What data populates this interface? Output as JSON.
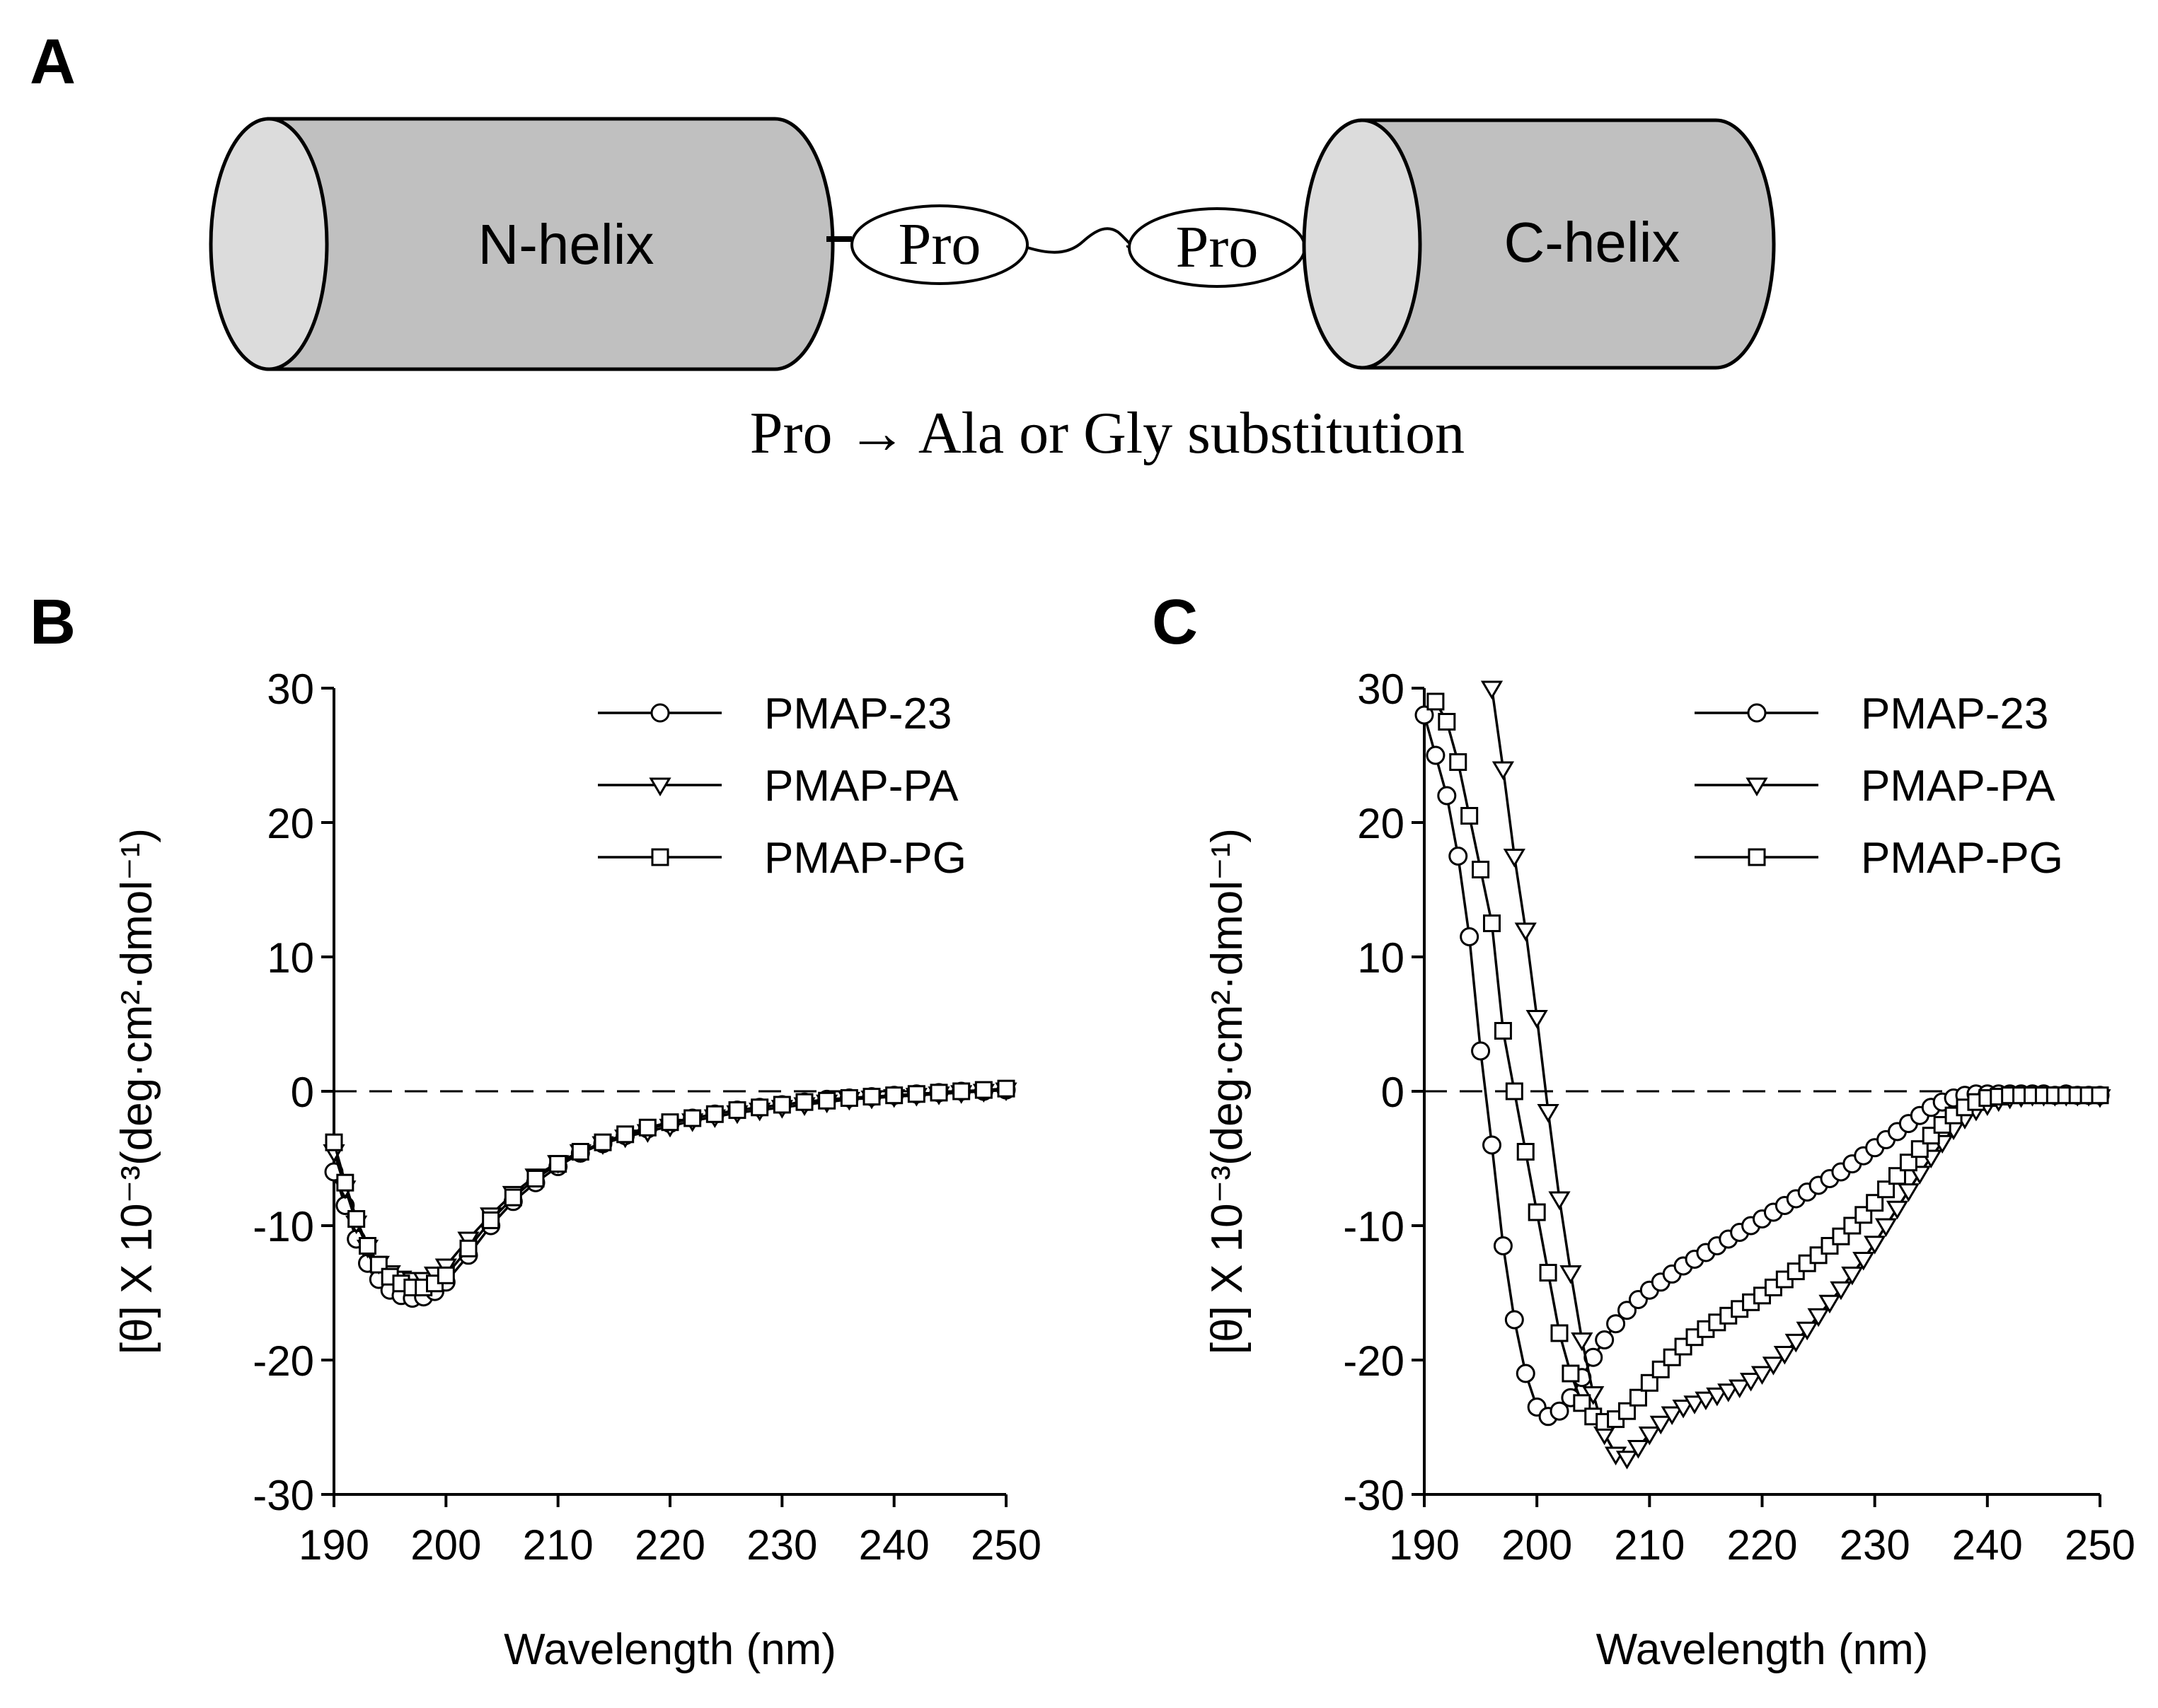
{
  "panel_a": {
    "letter": "A",
    "n_helix_label": "N-helix",
    "c_helix_label": "C-helix",
    "pro1_label": "Pro",
    "pro2_label": "Pro",
    "substitution_label": "Pro → Ala or Gly substitution",
    "helix_color": "#c0c0c0",
    "helix_cap_color": "#dcdcdc"
  },
  "chart_data": [
    {
      "panel": "B",
      "type": "line",
      "xlabel": "Wavelength (nm)",
      "ylabel": "[θ] X 10⁻³(deg·cm²·dmol⁻¹)",
      "xlim": [
        190,
        250
      ],
      "ylim": [
        -30,
        30
      ],
      "xticks": [
        190,
        200,
        210,
        220,
        230,
        240,
        250
      ],
      "yticks": [
        30,
        20,
        10,
        0,
        -10,
        -20,
        -30
      ],
      "zero_line": "dashed",
      "legend_position": "top-right",
      "x": [
        190,
        191,
        192,
        193,
        194,
        195,
        196,
        197,
        198,
        199,
        200,
        202,
        204,
        206,
        208,
        210,
        212,
        214,
        216,
        218,
        220,
        222,
        224,
        226,
        228,
        230,
        232,
        234,
        236,
        238,
        240,
        242,
        244,
        246,
        248,
        250
      ],
      "series": [
        {
          "name": "PMAP-23",
          "marker": "circle",
          "values": [
            -6.0,
            -8.5,
            -11.0,
            -12.8,
            -14.0,
            -14.8,
            -15.2,
            -15.4,
            -15.3,
            -14.9,
            -14.2,
            -12.2,
            -10.0,
            -8.2,
            -6.8,
            -5.6,
            -4.6,
            -3.9,
            -3.3,
            -2.8,
            -2.4,
            -2.0,
            -1.7,
            -1.4,
            -1.2,
            -1.0,
            -0.8,
            -0.6,
            -0.5,
            -0.4,
            -0.3,
            -0.2,
            -0.1,
            0.0,
            0.0,
            0.1
          ]
        },
        {
          "name": "PMAP-PA",
          "marker": "triangle-down",
          "values": [
            -4.5,
            -7.2,
            -9.8,
            -11.6,
            -12.8,
            -13.5,
            -13.9,
            -14.0,
            -14.0,
            -13.6,
            -13.0,
            -11.0,
            -9.2,
            -7.6,
            -6.3,
            -5.3,
            -4.5,
            -3.9,
            -3.4,
            -3.0,
            -2.6,
            -2.2,
            -1.9,
            -1.6,
            -1.4,
            -1.2,
            -1.0,
            -0.8,
            -0.6,
            -0.5,
            -0.4,
            -0.3,
            -0.2,
            -0.1,
            0.0,
            0.1
          ]
        },
        {
          "name": "PMAP-PG",
          "marker": "square",
          "values": [
            -3.8,
            -6.8,
            -9.5,
            -11.5,
            -12.9,
            -13.8,
            -14.3,
            -14.6,
            -14.6,
            -14.3,
            -13.7,
            -11.7,
            -9.6,
            -7.9,
            -6.5,
            -5.4,
            -4.5,
            -3.8,
            -3.2,
            -2.7,
            -2.3,
            -2.0,
            -1.7,
            -1.4,
            -1.2,
            -1.0,
            -0.8,
            -0.7,
            -0.5,
            -0.4,
            -0.3,
            -0.2,
            -0.1,
            0.0,
            0.1,
            0.2
          ]
        }
      ]
    },
    {
      "panel": "C",
      "type": "line",
      "xlabel": "Wavelength (nm)",
      "ylabel": "[θ] X 10⁻³(deg·cm²·dmol⁻¹)",
      "xlim": [
        190,
        250
      ],
      "ylim": [
        -30,
        30
      ],
      "xticks": [
        190,
        200,
        210,
        220,
        230,
        240,
        250
      ],
      "yticks": [
        30,
        20,
        10,
        0,
        -10,
        -20,
        -30
      ],
      "zero_line": "dashed",
      "legend_position": "top-right",
      "series": [
        {
          "name": "PMAP-23",
          "marker": "circle",
          "x": [
            190,
            191,
            192,
            193,
            194,
            195,
            196,
            197,
            198,
            199,
            200,
            201,
            202,
            203,
            204,
            205,
            206,
            207,
            208,
            209,
            210,
            211,
            212,
            213,
            214,
            215,
            216,
            217,
            218,
            219,
            220,
            221,
            222,
            223,
            224,
            225,
            226,
            227,
            228,
            229,
            230,
            231,
            232,
            233,
            234,
            235,
            236,
            237,
            238,
            239,
            240,
            241,
            242,
            243,
            244,
            245,
            246,
            247,
            248,
            249,
            250
          ],
          "values": [
            28.0,
            25.0,
            22.0,
            17.5,
            11.5,
            3.0,
            -4.0,
            -11.5,
            -17.0,
            -21.0,
            -23.5,
            -24.2,
            -23.8,
            -22.8,
            -21.3,
            -19.8,
            -18.5,
            -17.3,
            -16.3,
            -15.5,
            -14.8,
            -14.2,
            -13.6,
            -13.0,
            -12.5,
            -12.0,
            -11.5,
            -11.0,
            -10.5,
            -10.0,
            -9.5,
            -9.0,
            -8.5,
            -8.0,
            -7.5,
            -7.0,
            -6.5,
            -6.0,
            -5.4,
            -4.8,
            -4.2,
            -3.6,
            -3.0,
            -2.4,
            -1.8,
            -1.2,
            -0.8,
            -0.5,
            -0.3,
            -0.2,
            -0.2,
            -0.2,
            -0.2,
            -0.2,
            -0.2,
            -0.2,
            -0.3,
            -0.2,
            -0.3,
            -0.3,
            -0.3
          ]
        },
        {
          "name": "PMAP-PA",
          "marker": "triangle-down",
          "x": [
            196,
            197,
            198,
            199,
            200,
            201,
            202,
            203,
            204,
            205,
            206,
            207,
            208,
            209,
            210,
            211,
            212,
            213,
            214,
            215,
            216,
            217,
            218,
            219,
            220,
            221,
            222,
            223,
            224,
            225,
            226,
            227,
            228,
            229,
            230,
            231,
            232,
            233,
            234,
            235,
            236,
            237,
            238,
            239,
            240,
            241,
            242,
            243,
            244,
            245,
            246,
            247,
            248,
            249,
            250
          ],
          "values": [
            30.0,
            24.0,
            17.5,
            12.0,
            5.5,
            -1.5,
            -8.0,
            -13.5,
            -18.5,
            -22.5,
            -25.5,
            -27.0,
            -27.3,
            -26.5,
            -25.5,
            -24.7,
            -24.0,
            -23.5,
            -23.2,
            -22.9,
            -22.6,
            -22.3,
            -22.0,
            -21.5,
            -21.0,
            -20.3,
            -19.5,
            -18.6,
            -17.7,
            -16.7,
            -15.7,
            -14.7,
            -13.6,
            -12.5,
            -11.3,
            -10.0,
            -8.7,
            -7.4,
            -6.1,
            -4.9,
            -3.8,
            -2.8,
            -2.0,
            -1.4,
            -1.0,
            -0.7,
            -0.5,
            -0.4,
            -0.3,
            -0.3,
            -0.3,
            -0.3,
            -0.3,
            -0.3,
            -0.4
          ]
        },
        {
          "name": "PMAP-PG",
          "marker": "square",
          "x": [
            191,
            192,
            193,
            194,
            195,
            196,
            197,
            198,
            199,
            200,
            201,
            202,
            203,
            204,
            205,
            206,
            207,
            208,
            209,
            210,
            211,
            212,
            213,
            214,
            215,
            216,
            217,
            218,
            219,
            220,
            221,
            222,
            223,
            224,
            225,
            226,
            227,
            228,
            229,
            230,
            231,
            232,
            233,
            234,
            235,
            236,
            237,
            238,
            239,
            240,
            241,
            242,
            243,
            244,
            245,
            246,
            247,
            248,
            249,
            250
          ],
          "values": [
            29.0,
            27.5,
            24.5,
            20.5,
            16.5,
            12.5,
            4.5,
            0.0,
            -4.5,
            -9.0,
            -13.5,
            -18.0,
            -21.0,
            -23.2,
            -24.2,
            -24.6,
            -24.4,
            -23.8,
            -22.8,
            -21.7,
            -20.7,
            -19.8,
            -19.0,
            -18.3,
            -17.7,
            -17.2,
            -16.7,
            -16.2,
            -15.7,
            -15.2,
            -14.6,
            -14.0,
            -13.4,
            -12.8,
            -12.2,
            -11.5,
            -10.8,
            -10.0,
            -9.2,
            -8.3,
            -7.3,
            -6.3,
            -5.3,
            -4.3,
            -3.3,
            -2.5,
            -1.8,
            -1.2,
            -0.8,
            -0.5,
            -0.4,
            -0.3,
            -0.3,
            -0.3,
            -0.3,
            -0.3,
            -0.3,
            -0.3,
            -0.3,
            -0.3
          ]
        }
      ]
    }
  ]
}
